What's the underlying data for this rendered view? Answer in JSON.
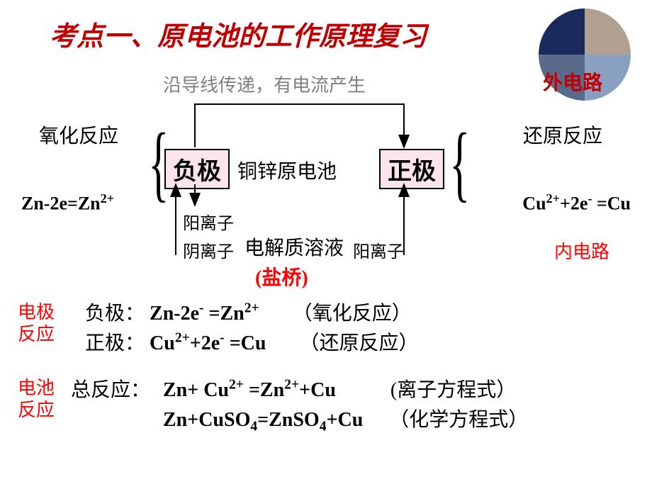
{
  "title": "考点一、原电池的工作原理复习",
  "outer_circuit": "外电路",
  "hidden_text": "沿导线传递，有电流产生",
  "oxidation": "氧化反应",
  "reduction": "还原反应",
  "neg_pole": "负极",
  "pos_pole": "正极",
  "cell_name": "铜锌原电池",
  "zn_equation": "Zn-2e=Zn<sup>2+</sup>",
  "cu_equation": "Cu<sup>2+</sup>+2e<sup>-</sup> =Cu",
  "cation": "阳离子",
  "anion": "阴离子",
  "electrolyte": "电解质溶液",
  "salt_bridge": "(盐桥)",
  "inner_circuit": "内电路",
  "electrode_reaction_label": "电极反应",
  "neg_line_label": "负极：",
  "neg_line_eq": "Zn-2e<sup>-</sup> =Zn<sup>2+</sup>",
  "neg_line_note": "（氧化反应）",
  "pos_line_label": "正极：",
  "pos_line_eq": "Cu<sup>2+</sup>+2e<sup>-</sup> =Cu",
  "pos_line_note": "（还原反应）",
  "battery_reaction_label": "电池反应",
  "total_label": "总反应：",
  "total_eq1": "Zn+ Cu<sup>2+</sup> =Zn<sup>2+</sup>+Cu",
  "total_note1": "(离子方程式）",
  "total_eq2": "Zn+CuSO<sub>4</sub>=ZnSO<sub>4</sub>+Cu",
  "total_note2": "（化学方程式）",
  "colors": {
    "title": "#c00000",
    "box_fill": "#fce4ec",
    "box_border": "#000000",
    "accent_red": "#ff0000",
    "text": "#000000",
    "background": "#ffffff"
  }
}
